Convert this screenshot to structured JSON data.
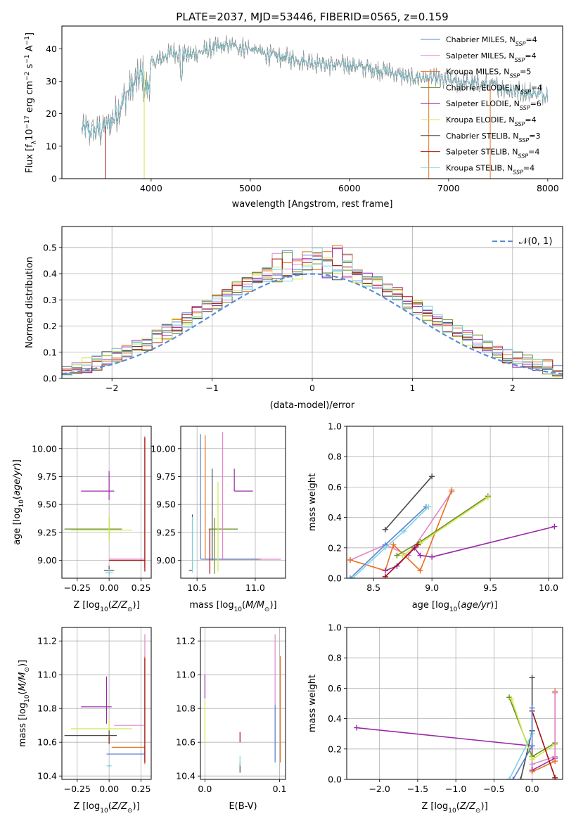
{
  "title": "PLATE=2037, MJD=53446, FIBERID=0565, z=0.159",
  "colors": {
    "Chabrier MILES": "#5b84d6",
    "Salpeter MILES": "#e387c8",
    "Kroupa MILES": "#e8721e",
    "Chabrier ELODIE": "#6b8e23",
    "Salpeter ELODIE": "#9a2aa8",
    "Kroupa ELODIE": "#cfe84a",
    "Chabrier STELIB": "#4a4a4a",
    "Salpeter STELIB": "#a01010",
    "Kroupa STELIB": "#7fd3e0",
    "data": "#808080",
    "normal": "#5b8ed6"
  },
  "chart_data": [
    {
      "id": "spectrum",
      "type": "line",
      "xlabel": "wavelength [Angstrom, rest frame]",
      "ylabel": "Flux [f_λ 10^-17 erg cm^-2 s^-1 A^-1]",
      "xlim": [
        3100,
        8150
      ],
      "ylim": [
        0,
        47
      ],
      "xticks": [
        4000,
        5000,
        6000,
        7000,
        8000
      ],
      "yticks": [
        0,
        10,
        20,
        30,
        40
      ],
      "grid": false,
      "legend": "top-right",
      "legend_entries": [
        "Chabrier MILES, N_SSP=4",
        "Salpeter MILES, N_SSP=4",
        "Kroupa MILES, N_SSP=5",
        "Chabrier ELODIE, N_SSP=4",
        "Salpeter ELODIE, N_SSP=6",
        "Kroupa ELODIE, N_SSP=4",
        "Chabrier STELIB, N_SSP=3",
        "Salpeter STELIB, N_SSP=4",
        "Kroupa STELIB, N_SSP=4"
      ],
      "continuum": {
        "x": [
          3300,
          3450,
          3550,
          3650,
          3750,
          3850,
          3950,
          4050,
          4150,
          4250,
          4400,
          4600,
          4800,
          5000,
          5200,
          5400,
          5600,
          5800,
          6000,
          6200,
          6400,
          6600,
          6800,
          7000,
          7200,
          7400,
          7600,
          7800,
          8000
        ],
        "y": [
          15,
          14.5,
          16,
          20,
          26,
          30,
          34,
          36,
          38,
          39,
          38,
          40,
          41,
          40,
          38,
          37,
          36,
          35,
          35,
          34,
          33,
          31,
          31,
          30,
          29.5,
          29,
          27.5,
          26.5,
          26
        ]
      },
      "model_start_x": {
        "Chabrier MILES": 3540,
        "Salpeter MILES": 3540,
        "Kroupa MILES": 3540,
        "Chabrier ELODIE": 3950,
        "Salpeter ELODIE": 3950,
        "Kroupa ELODIE": 3950,
        "Chabrier STELIB": 3300,
        "Salpeter STELIB": 3300,
        "Kroupa STELIB": 3300
      },
      "model_end_x": {
        "Chabrier MILES": 7420,
        "Salpeter MILES": 7420,
        "Kroupa MILES": 7420,
        "Chabrier ELODIE": 6800,
        "Salpeter ELODIE": 6800,
        "Kroupa ELODIE": 6800,
        "Chabrier STELIB": 8000,
        "Salpeter STELIB": 8000,
        "Kroupa STELIB": 8000
      }
    },
    {
      "id": "residuals",
      "type": "line",
      "xlabel": "(data-model)/error",
      "ylabel": "Normed distribution",
      "xlim": [
        -2.5,
        2.5
      ],
      "ylim": [
        0,
        0.58
      ],
      "xticks": [
        -2,
        -1,
        0,
        1,
        2
      ],
      "yticks": [
        0.0,
        0.1,
        0.2,
        0.3,
        0.4,
        0.5
      ],
      "grid": true,
      "legend": "top-right",
      "legend_entries": [
        "𝒩(0, 1)"
      ],
      "bin_width": 0.1
    },
    {
      "id": "age-vs-Z",
      "type": "scatter",
      "xlabel": "Z [log10(Z/Z☉)]",
      "ylabel": "age  [log10(age/yr)]",
      "xlim": [
        -0.37,
        0.33
      ],
      "ylim": [
        8.84,
        10.2
      ],
      "xticks": [
        -0.25,
        0.0,
        0.25
      ],
      "xtick_labels": [
        "−0.25",
        "0.00",
        "0.25"
      ],
      "yticks": [
        9.0,
        9.25,
        9.5,
        9.75,
        10.0
      ],
      "ytick_labels": [
        "9.00",
        "9.25",
        "9.50",
        "9.75",
        "10.00"
      ],
      "grid": true,
      "crosses": [
        {
          "model": "Chabrier ELODIE",
          "x": 0.0,
          "y": 9.28,
          "xerr": [
            0.35,
            0.1
          ],
          "yerr": [
            0.1,
            0.1
          ]
        },
        {
          "model": "Kroupa ELODIE",
          "x": 0.0,
          "y": 9.27,
          "xerr": [
            0.3,
            0.18
          ],
          "yerr": [
            0.1,
            0.12
          ]
        },
        {
          "model": "Salpeter ELODIE",
          "x": 0.0,
          "y": 9.62,
          "xerr": [
            0.22,
            0.04
          ],
          "yerr": [
            0.08,
            0.18
          ]
        },
        {
          "model": "Kroupa MILES",
          "x": 0.28,
          "y": 9.01,
          "xerr": [
            0.28,
            0.0
          ],
          "yerr": [
            0.08,
            1.1
          ]
        },
        {
          "model": "Salpeter MILES",
          "x": 0.28,
          "y": 9.01,
          "xerr": [
            0.28,
            0.0
          ],
          "yerr": [
            0.08,
            1.1
          ]
        },
        {
          "model": "Salpeter STELIB",
          "x": 0.28,
          "y": 9.0,
          "xerr": [
            0.28,
            0.0
          ],
          "yerr": [
            0.1,
            1.1
          ]
        },
        {
          "model": "Chabrier STELIB",
          "x": 0.0,
          "y": 8.91,
          "xerr": [
            0.04,
            0.04
          ],
          "yerr": [
            0.04,
            0.04
          ]
        },
        {
          "model": "Kroupa STELIB",
          "x": 0.0,
          "y": 8.89,
          "xerr": [
            0.03,
            0.03
          ],
          "yerr": [
            0.03,
            0.03
          ]
        }
      ]
    },
    {
      "id": "age-vs-mass",
      "type": "scatter",
      "xlabel": "mass [log10(M/M☉)]",
      "xlim": [
        10.36,
        11.26
      ],
      "ylim": [
        8.84,
        10.2
      ],
      "xticks": [
        10.5,
        11.0
      ],
      "xtick_labels": [
        "10.5",
        "11.0"
      ],
      "yticks": [
        9.0,
        9.25,
        9.5,
        9.75,
        10.0
      ],
      "ytick_labels": [
        "9.00",
        "9.25",
        "9.50",
        "9.75",
        "10.00"
      ],
      "grid": true,
      "crosses": [
        {
          "model": "Chabrier ELODIE",
          "x": 10.65,
          "y": 9.28,
          "xerr": [
            0.05,
            0.2
          ],
          "yerr": [
            0.4,
            0.1
          ]
        },
        {
          "model": "Salpeter ELODIE",
          "x": 10.82,
          "y": 9.62,
          "xerr": [
            0.0,
            0.16
          ],
          "yerr": [
            0.0,
            0.2
          ]
        },
        {
          "model": "Salpeter MILES",
          "x": 10.72,
          "y": 9.01,
          "xerr": [
            0.0,
            0.5
          ],
          "yerr": [
            0.0,
            1.14
          ]
        },
        {
          "model": "Kroupa MILES",
          "x": 10.57,
          "y": 9.01,
          "xerr": [
            0.0,
            0.48
          ],
          "yerr": [
            0.0,
            1.11
          ]
        },
        {
          "model": "Chabrier MILES",
          "x": 10.53,
          "y": 9.01,
          "xerr": [
            0.0,
            0.5
          ],
          "yerr": [
            0.0,
            1.12
          ]
        },
        {
          "model": "Salpeter STELIB",
          "x": 10.61,
          "y": 8.88,
          "xerr": [
            0.0,
            0.0
          ],
          "yerr": [
            0.0,
            0.4
          ]
        },
        {
          "model": "Chabrier STELIB",
          "x": 10.46,
          "y": 8.91,
          "xerr": [
            0.03,
            0.0
          ],
          "yerr": [
            0.0,
            0.5
          ]
        },
        {
          "model": "Kroupa STELIB",
          "x": 10.46,
          "y": 8.89,
          "xerr": [
            0.0,
            0.0
          ],
          "yerr": [
            0.0,
            0.5
          ]
        },
        {
          "model": "Chabrier STELIB",
          "x": 10.63,
          "y": 9.0,
          "xerr": [
            0.0,
            0.0
          ],
          "yerr": [
            0.0,
            0.82
          ]
        },
        {
          "model": "Kroupa ELODIE",
          "x": 10.68,
          "y": 9.27,
          "xerr": [
            0.0,
            0.0
          ],
          "yerr": [
            0.37,
            0.43
          ]
        }
      ]
    },
    {
      "id": "mass-weight-vs-age",
      "type": "line",
      "xlabel": "age  [log10(age/yr)]",
      "ylabel": "mass weight",
      "xlim": [
        8.27,
        10.12
      ],
      "ylim": [
        0.0,
        1.0
      ],
      "xticks": [
        8.5,
        9.0,
        9.5,
        10.0
      ],
      "xtick_labels": [
        "8.5",
        "9.0",
        "9.5",
        "10.0"
      ],
      "yticks": [
        0.0,
        0.2,
        0.4,
        0.6,
        0.8,
        1.0
      ],
      "ytick_labels": [
        "0.0",
        "0.2",
        "0.4",
        "0.6",
        "0.8",
        "1.0"
      ],
      "grid": true,
      "series": [
        {
          "model": "Chabrier STELIB",
          "x": [
            8.6,
            9.0
          ],
          "y": [
            0.32,
            0.67
          ]
        },
        {
          "model": "Salpeter MILES",
          "x": [
            8.3,
            8.6,
            8.8,
            9.17
          ],
          "y": [
            0.12,
            0.22,
            0.15,
            0.57
          ]
        },
        {
          "model": "Kroupa MILES",
          "x": [
            8.3,
            8.6,
            8.67,
            8.9,
            9.17
          ],
          "y": [
            0.12,
            0.05,
            0.22,
            0.05,
            0.58
          ]
        },
        {
          "model": "Chabrier ELODIE",
          "x": [
            8.7,
            8.9,
            9.48
          ],
          "y": [
            0.15,
            0.24,
            0.54
          ]
        },
        {
          "model": "Kroupa ELODIE",
          "x": [
            8.75,
            8.9,
            9.48
          ],
          "y": [
            0.15,
            0.23,
            0.53
          ]
        },
        {
          "model": "Salpeter ELODIE",
          "x": [
            8.6,
            8.7,
            8.85,
            8.9,
            9.0,
            10.05
          ],
          "y": [
            0.05,
            0.08,
            0.2,
            0.15,
            0.14,
            0.34
          ]
        },
        {
          "model": "Salpeter STELIB",
          "x": [
            8.6,
            8.88
          ],
          "y": [
            0.01,
            0.22
          ]
        },
        {
          "model": "Chabrier MILES",
          "x": [
            8.3,
            8.6,
            8.95
          ],
          "y": [
            0.0,
            0.22,
            0.47
          ]
        },
        {
          "model": "Kroupa STELIB",
          "x": [
            8.32,
            8.6,
            8.76,
            8.97
          ],
          "y": [
            0.0,
            0.2,
            0.31,
            0.47
          ]
        }
      ]
    },
    {
      "id": "mass-vs-Z",
      "type": "scatter",
      "xlabel": "Z [log10(Z/Z☉)]",
      "ylabel": "mass [log10(M/M☉)]",
      "xlim": [
        -0.37,
        0.33
      ],
      "ylim": [
        10.38,
        11.28
      ],
      "xticks": [
        -0.25,
        0.0,
        0.25
      ],
      "xtick_labels": [
        "−0.25",
        "0.00",
        "0.25"
      ],
      "yticks": [
        10.4,
        10.6,
        10.8,
        11.0,
        11.2
      ],
      "ytick_labels": [
        "10.4",
        "10.6",
        "10.8",
        "11.0",
        "11.2"
      ],
      "grid": true,
      "crosses": [
        {
          "model": "Salpeter ELODIE",
          "x": -0.02,
          "y": 10.81,
          "xerr": [
            0.2,
            0.04
          ],
          "yerr": [
            0.1,
            0.18
          ]
        },
        {
          "model": "Kroupa ELODIE",
          "x": 0.0,
          "y": 10.68,
          "xerr": [
            0.3,
            0.18
          ],
          "yerr": [
            0.06,
            0.06
          ]
        },
        {
          "model": "Chabrier STELIB",
          "x": 0.0,
          "y": 10.64,
          "xerr": [
            0.35,
            0.06
          ],
          "yerr": [
            0.03,
            0.03
          ]
        },
        {
          "model": "Salpeter MILES",
          "x": 0.28,
          "y": 10.7,
          "xerr": [
            0.24,
            0.0
          ],
          "yerr": [
            0.1,
            0.54
          ]
        },
        {
          "model": "Kroupa MILES",
          "x": 0.28,
          "y": 10.57,
          "xerr": [
            0.26,
            0.0
          ],
          "yerr": [
            0.1,
            0.54
          ]
        },
        {
          "model": "Salpeter STELIB",
          "x": 0.0,
          "y": 10.61,
          "xerr": [
            0.0,
            0.0
          ],
          "yerr": [
            0.02,
            0.02
          ]
        },
        {
          "model": "Chabrier MILES",
          "x": 0.28,
          "y": 10.53,
          "xerr": [
            0.3,
            0.0
          ],
          "yerr": [
            0.05,
            0.05
          ]
        },
        {
          "model": "Kroupa STELIB",
          "x": 0.0,
          "y": 10.46,
          "xerr": [
            0.02,
            0.02
          ],
          "yerr": [
            0.01,
            0.01
          ]
        },
        {
          "model": "Salpeter STELIB",
          "x": 0.28,
          "y": 10.6,
          "xerr": [
            0.0,
            0.0
          ],
          "yerr": [
            0.12,
            0.5
          ]
        }
      ]
    },
    {
      "id": "mass-vs-EBV",
      "type": "scatter",
      "xlabel": "E(B-V)",
      "xlim": [
        -0.006,
        0.108
      ],
      "ylim": [
        10.38,
        11.28
      ],
      "xticks": [
        0.0,
        0.1
      ],
      "xtick_labels": [
        "0.0",
        "0.1"
      ],
      "yticks": [
        10.4,
        10.6,
        10.8,
        11.0,
        11.2
      ],
      "ytick_labels": [
        "10.4",
        "10.6",
        "10.8",
        "11.0",
        "11.2"
      ],
      "grid": true,
      "crosses": [
        {
          "model": "Salpeter ELODIE",
          "x": 0.0,
          "y": 10.92,
          "xerr": [
            0,
            0
          ],
          "yerr": [
            0.06,
            0.08
          ]
        },
        {
          "model": "Kroupa ELODIE",
          "x": 0.0,
          "y": 10.68,
          "xerr": [
            0,
            0
          ],
          "yerr": [
            0.08,
            0.17
          ]
        },
        {
          "model": "Salpeter STELIB",
          "x": 0.047,
          "y": 10.63,
          "xerr": [
            0,
            0
          ],
          "yerr": [
            0.03,
            0.03
          ]
        },
        {
          "model": "Chabrier STELIB",
          "x": 0.047,
          "y": 10.45,
          "xerr": [
            0,
            0
          ],
          "yerr": [
            0.03,
            0.03
          ]
        },
        {
          "model": "Kroupa STELIB",
          "x": 0.047,
          "y": 10.49,
          "xerr": [
            0,
            0
          ],
          "yerr": [
            0.03,
            0.03
          ]
        },
        {
          "model": "Salpeter MILES",
          "x": 0.094,
          "y": 10.88,
          "xerr": [
            0,
            0
          ],
          "yerr": [
            0.38,
            0.36
          ]
        },
        {
          "model": "Chabrier MILES",
          "x": 0.094,
          "y": 10.65,
          "xerr": [
            0,
            0
          ],
          "yerr": [
            0.17,
            0.17
          ]
        },
        {
          "model": "Kroupa MILES",
          "x": 0.101,
          "y": 10.86,
          "xerr": [
            0,
            0
          ],
          "yerr": [
            0.38,
            0.25
          ]
        }
      ]
    },
    {
      "id": "mass-weight-vs-Z",
      "type": "line",
      "xlabel": "Z [log10(Z/Z☉)]",
      "ylabel": "mass weight",
      "xlim": [
        -2.43,
        0.4
      ],
      "ylim": [
        0.0,
        1.0
      ],
      "xticks": [
        -2.0,
        -1.5,
        -1.0,
        -0.5,
        0.0
      ],
      "xtick_labels": [
        "−2.0",
        "−1.5",
        "−1.0",
        "−0.5",
        "0.0"
      ],
      "yticks": [
        0.0,
        0.2,
        0.4,
        0.6,
        0.8,
        1.0
      ],
      "ytick_labels": [
        "0.0",
        "0.2",
        "0.4",
        "0.6",
        "0.8",
        "1.0"
      ],
      "grid": true,
      "series": [
        {
          "model": "Salpeter ELODIE",
          "x": [
            -2.3,
            0.0,
            0.0,
            0.3
          ],
          "y": [
            0.34,
            0.22,
            0.06,
            0.14
          ]
        },
        {
          "model": "Chabrier STELIB",
          "x": [
            -0.15,
            0.0,
            0.0
          ],
          "y": [
            0.0,
            0.32,
            0.67
          ]
        },
        {
          "model": "Chabrier ELODIE",
          "x": [
            -0.3,
            0.0,
            0.3
          ],
          "y": [
            0.54,
            0.15,
            0.24
          ]
        },
        {
          "model": "Kroupa ELODIE",
          "x": [
            -0.27,
            0.0,
            0.3
          ],
          "y": [
            0.53,
            0.13,
            0.23
          ]
        },
        {
          "model": "Kroupa MILES",
          "x": [
            0.0,
            0.3,
            0.3
          ],
          "y": [
            0.05,
            0.12,
            0.58
          ]
        },
        {
          "model": "Salpeter MILES",
          "x": [
            0.0,
            0.3,
            0.3
          ],
          "y": [
            0.1,
            0.15,
            0.57
          ]
        },
        {
          "model": "Salpeter STELIB",
          "x": [
            0.0,
            0.3
          ],
          "y": [
            0.45,
            0.01
          ]
        },
        {
          "model": "Kroupa STELIB",
          "x": [
            -0.3,
            0.0,
            0.0
          ],
          "y": [
            0.0,
            0.3,
            0.47
          ]
        },
        {
          "model": "Chabrier MILES",
          "x": [
            -0.25,
            0.0,
            0.0
          ],
          "y": [
            0.0,
            0.22,
            0.47
          ]
        }
      ]
    }
  ]
}
